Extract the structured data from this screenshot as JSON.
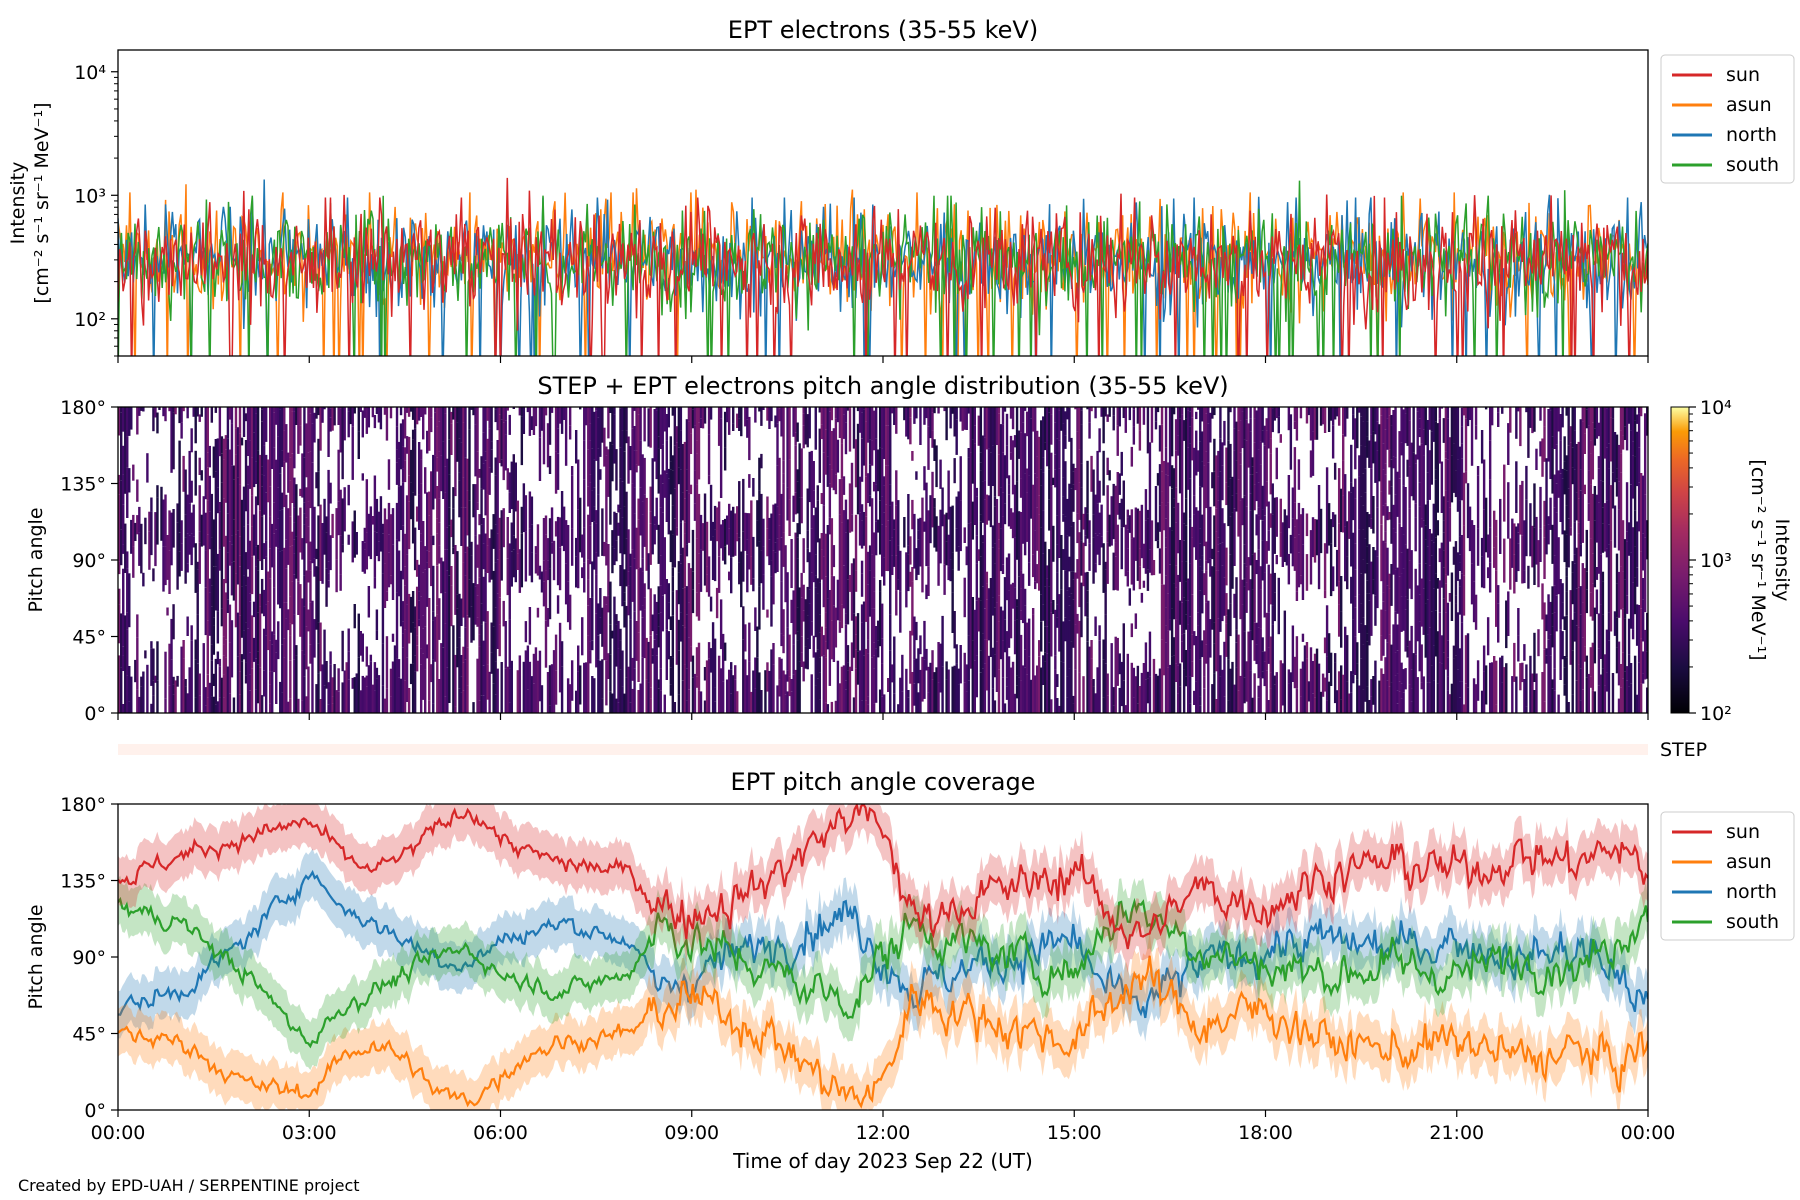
{
  "figure": {
    "credit": "Created by EPD-UAH / SERPENTINE project"
  },
  "chart_data": [
    {
      "type": "line",
      "title": "EPT electrons (35-55 keV)",
      "ylabel_line1": "Intensity",
      "ylabel_line2": "[cm⁻² s⁻¹ sr⁻¹ MeV⁻¹]",
      "yscale": "log",
      "ylim": [
        50,
        15000
      ],
      "yticks": [
        {
          "value": 100,
          "label": "10²"
        },
        {
          "value": 1000,
          "label": "10³"
        },
        {
          "value": 10000,
          "label": "10⁴"
        }
      ],
      "xlim_hours": [
        0,
        24
      ],
      "legend_position": "outside-right",
      "series": [
        {
          "name": "sun",
          "color": "#d62728",
          "typical": 300,
          "spread": 0.35
        },
        {
          "name": "asun",
          "color": "#ff7f0e",
          "typical": 330,
          "spread": 0.35
        },
        {
          "name": "north",
          "color": "#1f77b4",
          "typical": 300,
          "spread": 0.35
        },
        {
          "name": "south",
          "color": "#2ca02c",
          "typical": 310,
          "spread": 0.35
        }
      ],
      "note_values": "Noisy counts fluctuating roughly between 10^2 and 10^3 with spikes to ~1.1x10^3"
    },
    {
      "type": "heatmap",
      "title": "STEP + EPT electrons pitch angle distribution (35-55 keV)",
      "ylabel": "Pitch angle",
      "yticks": [
        "0°",
        "45°",
        "90°",
        "135°",
        "180°"
      ],
      "ylim": [
        0,
        180
      ],
      "xlim_hours": [
        0,
        24
      ],
      "colorbar": {
        "label_line1": "Intensity",
        "label_line2": "[cm⁻² s⁻¹ sr⁻¹ MeV⁻¹]",
        "scale": "log",
        "range": [
          100,
          10000
        ],
        "ticks": [
          "10²",
          "10³",
          "10⁴"
        ],
        "colormap": "inferno"
      },
      "step_label": "STEP",
      "typical_intensity": 300
    },
    {
      "type": "line",
      "title": "EPT pitch angle coverage",
      "ylabel": "Pitch angle",
      "xlabel": "Time of day 2023 Sep 22 (UT)",
      "yticks": [
        "0°",
        "45°",
        "90°",
        "135°",
        "180°"
      ],
      "ylim": [
        0,
        180
      ],
      "xticks": [
        "00:00",
        "03:00",
        "06:00",
        "09:00",
        "12:00",
        "15:00",
        "18:00",
        "21:00",
        "00:00"
      ],
      "xlim_hours": [
        0,
        24
      ],
      "legend_position": "outside-right",
      "series": [
        {
          "name": "sun",
          "color": "#d62728",
          "keyframes": [
            [
              0,
              135
            ],
            [
              1,
              150
            ],
            [
              2,
              160
            ],
            [
              3,
              170
            ],
            [
              3.5,
              150
            ],
            [
              4,
              140
            ],
            [
              4.5,
              150
            ],
            [
              5,
              165
            ],
            [
              5.5,
              178
            ],
            [
              6,
              160
            ],
            [
              6.5,
              150
            ],
            [
              7,
              145
            ],
            [
              8,
              140
            ],
            [
              8.5,
              120
            ],
            [
              9,
              115
            ],
            [
              10,
              130
            ],
            [
              10.5,
              145
            ],
            [
              11,
              160
            ],
            [
              11.5,
              175
            ],
            [
              12,
              165
            ],
            [
              12.5,
              110
            ],
            [
              13,
              120
            ],
            [
              14,
              130
            ],
            [
              15,
              140
            ],
            [
              15.5,
              120
            ],
            [
              16,
              100
            ],
            [
              17,
              130
            ],
            [
              18,
              120
            ],
            [
              19,
              140
            ],
            [
              20,
              145
            ],
            [
              21,
              140
            ],
            [
              22,
              150
            ],
            [
              23,
              145
            ],
            [
              23.5,
              155
            ],
            [
              24,
              140
            ]
          ]
        },
        {
          "name": "asun",
          "color": "#ff7f0e",
          "keyframes": [
            [
              0,
              45
            ],
            [
              1,
              40
            ],
            [
              2,
              15
            ],
            [
              3,
              10
            ],
            [
              3.5,
              30
            ],
            [
              4,
              40
            ],
            [
              4.5,
              30
            ],
            [
              5,
              10
            ],
            [
              5.5,
              5
            ],
            [
              6,
              20
            ],
            [
              6.5,
              35
            ],
            [
              7,
              40
            ],
            [
              8,
              45
            ],
            [
              8.5,
              60
            ],
            [
              9,
              65
            ],
            [
              10,
              50
            ],
            [
              10.5,
              35
            ],
            [
              11,
              20
            ],
            [
              11.5,
              5
            ],
            [
              12,
              15
            ],
            [
              12.5,
              70
            ],
            [
              13,
              60
            ],
            [
              14,
              50
            ],
            [
              15,
              40
            ],
            [
              15.5,
              60
            ],
            [
              16,
              80
            ],
            [
              17,
              50
            ],
            [
              18,
              60
            ],
            [
              19,
              40
            ],
            [
              20,
              35
            ],
            [
              21,
              40
            ],
            [
              22,
              30
            ],
            [
              23,
              35
            ],
            [
              23.5,
              25
            ],
            [
              24,
              40
            ]
          ]
        },
        {
          "name": "north",
          "color": "#1f77b4",
          "keyframes": [
            [
              0,
              60
            ],
            [
              1,
              70
            ],
            [
              2,
              100
            ],
            [
              3,
              140
            ],
            [
              3.5,
              120
            ],
            [
              4,
              110
            ],
            [
              4.5,
              100
            ],
            [
              5,
              90
            ],
            [
              5.5,
              85
            ],
            [
              6,
              100
            ],
            [
              7,
              110
            ],
            [
              8,
              100
            ],
            [
              8.5,
              70
            ],
            [
              9,
              80
            ],
            [
              10,
              95
            ],
            [
              11,
              110
            ],
            [
              11.5,
              115
            ],
            [
              12,
              90
            ],
            [
              12.5,
              70
            ],
            [
              13,
              80
            ],
            [
              14,
              90
            ],
            [
              15,
              100
            ],
            [
              15.5,
              70
            ],
            [
              16,
              60
            ],
            [
              17,
              85
            ],
            [
              18,
              95
            ],
            [
              19,
              100
            ],
            [
              20,
              95
            ],
            [
              21,
              100
            ],
            [
              22,
              90
            ],
            [
              23,
              95
            ],
            [
              23.5,
              80
            ],
            [
              24,
              60
            ]
          ]
        },
        {
          "name": "south",
          "color": "#2ca02c",
          "keyframes": [
            [
              0,
              120
            ],
            [
              1,
              110
            ],
            [
              2,
              80
            ],
            [
              3,
              40
            ],
            [
              3.5,
              60
            ],
            [
              4,
              70
            ],
            [
              4.5,
              80
            ],
            [
              5,
              90
            ],
            [
              5.5,
              95
            ],
            [
              6,
              80
            ],
            [
              7,
              70
            ],
            [
              8,
              80
            ],
            [
              8.5,
              110
            ],
            [
              9,
              100
            ],
            [
              10,
              85
            ],
            [
              11,
              70
            ],
            [
              11.5,
              65
            ],
            [
              12,
              90
            ],
            [
              12.5,
              110
            ],
            [
              13,
              100
            ],
            [
              14,
              90
            ],
            [
              15,
              80
            ],
            [
              15.5,
              110
            ],
            [
              16,
              120
            ],
            [
              17,
              95
            ],
            [
              18,
              85
            ],
            [
              19,
              80
            ],
            [
              20,
              85
            ],
            [
              21,
              80
            ],
            [
              22,
              90
            ],
            [
              23,
              85
            ],
            [
              23.5,
              100
            ],
            [
              24,
              120
            ]
          ]
        }
      ]
    }
  ]
}
